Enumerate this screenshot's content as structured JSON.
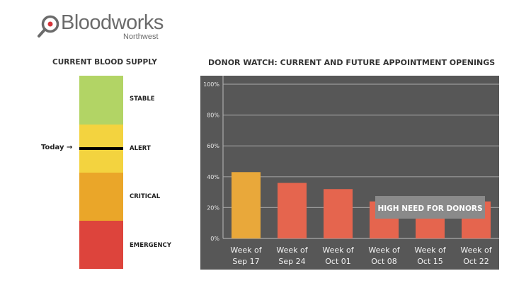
{
  "logo": {
    "name": "Bloodworks",
    "sub": "Northwest",
    "icon": "magnifier-drop-icon"
  },
  "supply": {
    "title": "CURRENT BLOOD SUPPLY",
    "levels": [
      {
        "label": "STABLE",
        "color": "#b2d465"
      },
      {
        "label": "ALERT",
        "color": "#f3d33f"
      },
      {
        "label": "CRITICAL",
        "color": "#eaa629"
      },
      {
        "label": "EMERGENCY",
        "color": "#dd443c"
      }
    ],
    "today_label": "Today →",
    "current_level": "ALERT"
  },
  "chart_data": {
    "type": "bar",
    "title": "DONOR WATCH: CURRENT AND FUTURE APPOINTMENT OPENINGS",
    "xlabel": "",
    "ylabel": "",
    "categories": [
      [
        "Week of",
        "Sep 17"
      ],
      [
        "Week of",
        "Sep 24"
      ],
      [
        "Week of",
        "Oct 01"
      ],
      [
        "Week of",
        "Oct 08"
      ],
      [
        "Week of",
        "Oct 15"
      ],
      [
        "Week of",
        "Oct 22"
      ]
    ],
    "values": [
      43,
      36,
      32,
      24,
      24,
      24
    ],
    "bar_colors": [
      "#e9a83a",
      "#e5654e",
      "#e5654e",
      "#e5654e",
      "#e5654e",
      "#e5654e"
    ],
    "ylim": [
      0,
      100
    ],
    "yticks": [
      "0%",
      "20%",
      "40%",
      "60%",
      "80%",
      "100%"
    ],
    "ytick_values": [
      0,
      20,
      40,
      60,
      80,
      100
    ],
    "grid": true,
    "background": "#575757",
    "annotation": "HIGH NEED FOR DONORS"
  }
}
